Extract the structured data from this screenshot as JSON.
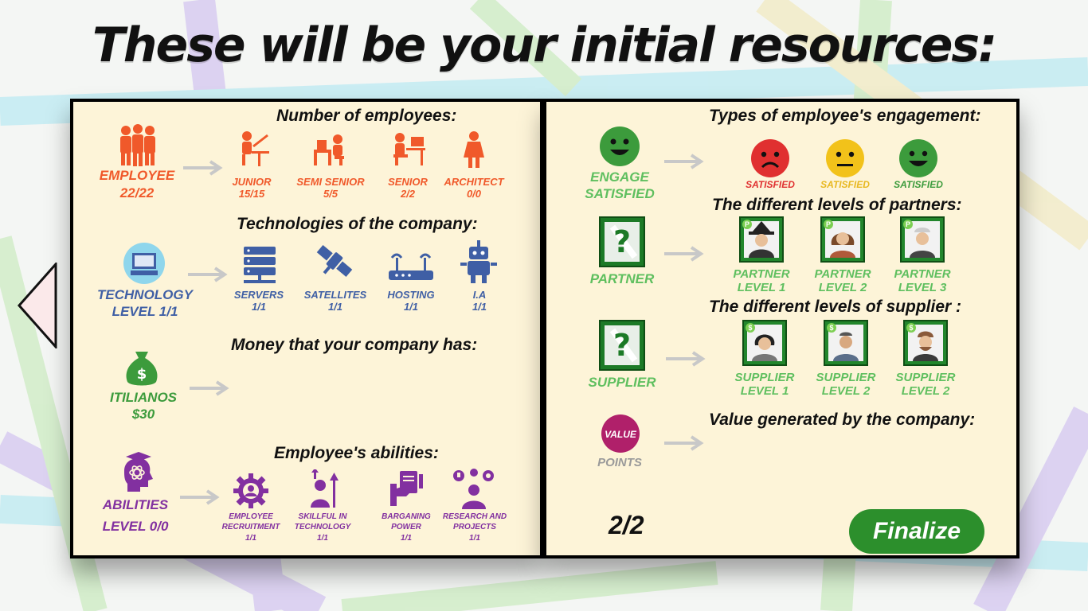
{
  "title": "These will be your initial resources:",
  "left_panel": {
    "employees": {
      "heading": "Number of employees:",
      "main_label": "EMPLOYEE",
      "main_value": "22/22",
      "items": [
        {
          "label": "JUNIOR",
          "value": "15/15"
        },
        {
          "label": "SEMI SENIOR",
          "value": "5/5"
        },
        {
          "label": "SENIOR",
          "value": "2/2"
        },
        {
          "label": "ARCHITECT",
          "value": "0/0"
        }
      ]
    },
    "technology": {
      "heading": "Technologies of the company:",
      "main_label": "TECHNOLOGY",
      "main_value": "LEVEL 1/1",
      "items": [
        {
          "label": "SERVERS",
          "value": "1/1"
        },
        {
          "label": "SATELLITES",
          "value": "1/1"
        },
        {
          "label": "HOSTING",
          "value": "1/1"
        },
        {
          "label": "I.A",
          "value": "1/1"
        }
      ]
    },
    "money": {
      "heading": "Money that your company has:",
      "main_label": "ITILIANOS",
      "main_value": "$30",
      "icon_symbol": "$"
    },
    "abilities": {
      "heading": "Employee's abilities:",
      "main_label": "ABILITIES",
      "main_value": "LEVEL 0/0",
      "items": [
        {
          "label1": "EMPLOYEE",
          "label2": "RECRUITMENT",
          "value": "1/1"
        },
        {
          "label1": "SKILLFUL IN",
          "label2": "TECHNOLOGY",
          "value": "1/1"
        },
        {
          "label1": "BARGANING",
          "label2": "POWER",
          "value": "1/1"
        },
        {
          "label1": "RESEARCH AND",
          "label2": "PROJECTS",
          "value": "1/1"
        }
      ]
    }
  },
  "right_panel": {
    "engagement": {
      "heading": "Types of employee's engagement:",
      "main_label1": "ENGAGE",
      "main_label2": "SATISFIED",
      "items": [
        {
          "label": "SATISFIED",
          "color": "#e03030"
        },
        {
          "label": "SATISFIED",
          "color": "#e8b820"
        },
        {
          "label": "SATISFIED",
          "color": "#3c9b3c"
        }
      ]
    },
    "partners": {
      "heading": "The different levels of partners:",
      "main_label": "PARTNER",
      "badge": "P",
      "items": [
        {
          "label1": "PARTNER",
          "label2": "LEVEL 1"
        },
        {
          "label1": "PARTNER",
          "label2": "LEVEL 2"
        },
        {
          "label1": "PARTNER",
          "label2": "LEVEL 3"
        }
      ]
    },
    "suppliers": {
      "heading": "The different levels of  supplier :",
      "main_label": "SUPPLIER",
      "badge": "$",
      "items": [
        {
          "label1": "SUPPLIER",
          "label2": "LEVEL 1"
        },
        {
          "label1": "SUPPLIER",
          "label2": "LEVEL 2"
        },
        {
          "label1": "SUPPLIER",
          "label2": "LEVEL 2"
        }
      ]
    },
    "value": {
      "heading": "Value generated by the company:",
      "icon_text": "VALUE",
      "main_label": "POINTS"
    },
    "page_indicator": "2/2",
    "finalize_label": "Finalize"
  },
  "colors": {
    "employee": "#f0592a",
    "technology": "#3f5fa5",
    "money": "#3c9b3c",
    "abilities": "#8230a0",
    "partner_supplier": "#5fbf5f",
    "value_icon": "#b0206a"
  }
}
